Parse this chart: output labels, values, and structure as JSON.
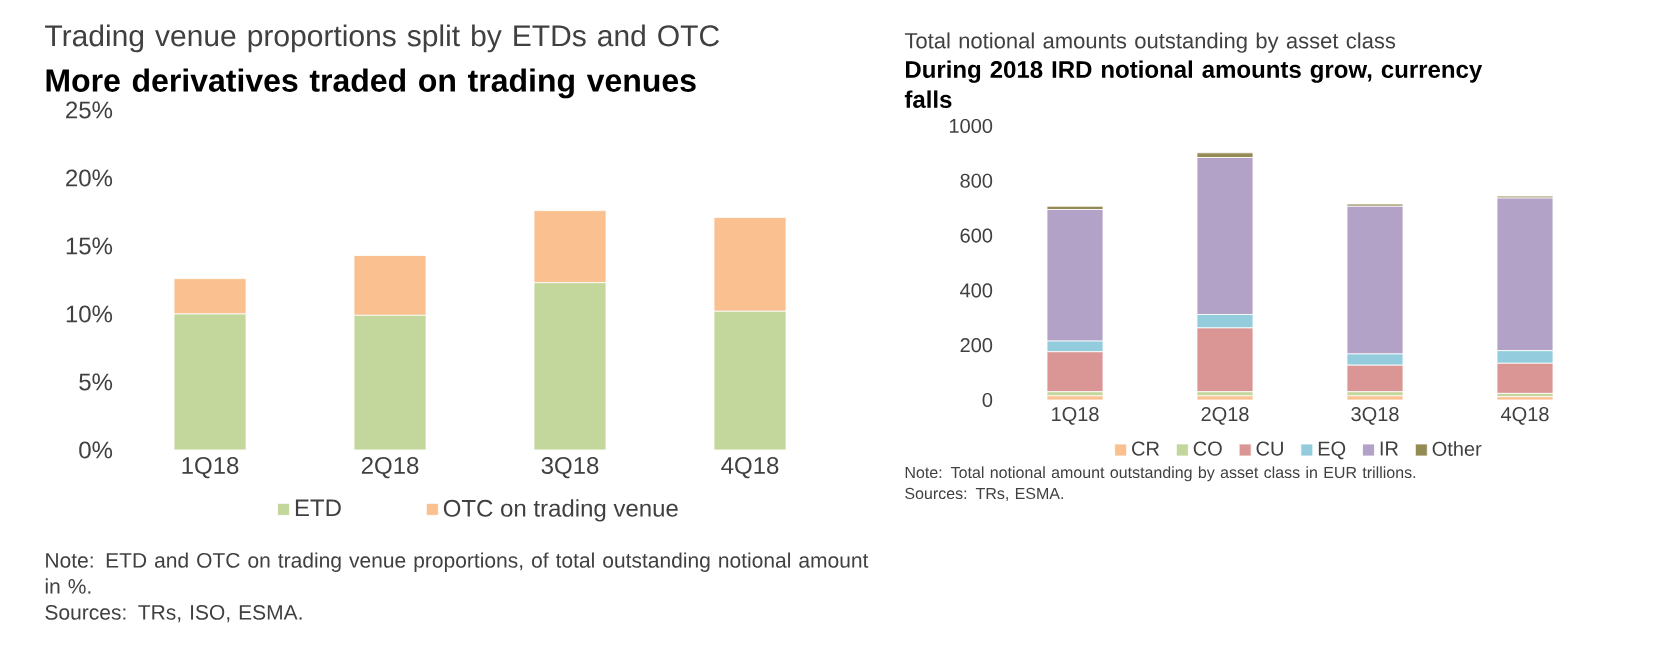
{
  "chart_data": [
    {
      "type": "bar",
      "stacked": true,
      "title": "Trading venue proportions split by ETDs and OTC",
      "subtitle": "More derivatives traded on trading venues",
      "categories": [
        "1Q18",
        "2Q18",
        "3Q18",
        "4Q18"
      ],
      "series": [
        {
          "name": "ETD",
          "color": "#c3d69b",
          "values": [
            10.0,
            9.9,
            12.3,
            10.2
          ]
        },
        {
          "name": "OTC on trading venue",
          "color": "#fac090",
          "values": [
            2.6,
            4.4,
            5.3,
            6.9
          ]
        }
      ],
      "ylim": [
        0,
        25
      ],
      "yticks": [
        {
          "value": 0,
          "label": "0%"
        },
        {
          "value": 5,
          "label": "5%"
        },
        {
          "value": 10,
          "label": "10%"
        },
        {
          "value": 15,
          "label": "15%"
        },
        {
          "value": 20,
          "label": "20%"
        },
        {
          "value": 25,
          "label": "25%"
        }
      ],
      "legend": "bottom",
      "annotations": [
        "Note: ETD and OTC on trading venue proportions, of total outstanding notional amount in %.",
        "Sources: TRs, ISO, ESMA."
      ]
    },
    {
      "type": "bar",
      "stacked": true,
      "title": "Total notional amounts outstanding by asset class",
      "subtitle": "During 2018 IRD notional amounts grow, currency falls",
      "categories": [
        "1Q18",
        "2Q18",
        "3Q18",
        "4Q18"
      ],
      "series": [
        {
          "name": "CR",
          "color": "#fac090",
          "values": [
            15,
            15,
            15,
            12
          ]
        },
        {
          "name": "CO",
          "color": "#c3d69b",
          "values": [
            15,
            15,
            15,
            12
          ]
        },
        {
          "name": "CU",
          "color": "#d99694",
          "values": [
            146,
            233,
            97,
            110
          ]
        },
        {
          "name": "EQ",
          "color": "#93cddd",
          "values": [
            39,
            49,
            41,
            46
          ]
        },
        {
          "name": "IR",
          "color": "#b3a2c7",
          "values": [
            480,
            573,
            539,
            557
          ]
        },
        {
          "name": "Other",
          "color": "#948a54",
          "values": [
            12,
            17,
            8,
            7
          ]
        }
      ],
      "ylim": [
        0,
        1000
      ],
      "yticks": [
        0,
        200,
        400,
        600,
        800,
        1000
      ],
      "legend": "bottom",
      "annotations": [
        "Note: Total notional amount outstanding by asset class in EUR trillions.",
        "Sources: TRs, ESMA."
      ]
    }
  ]
}
